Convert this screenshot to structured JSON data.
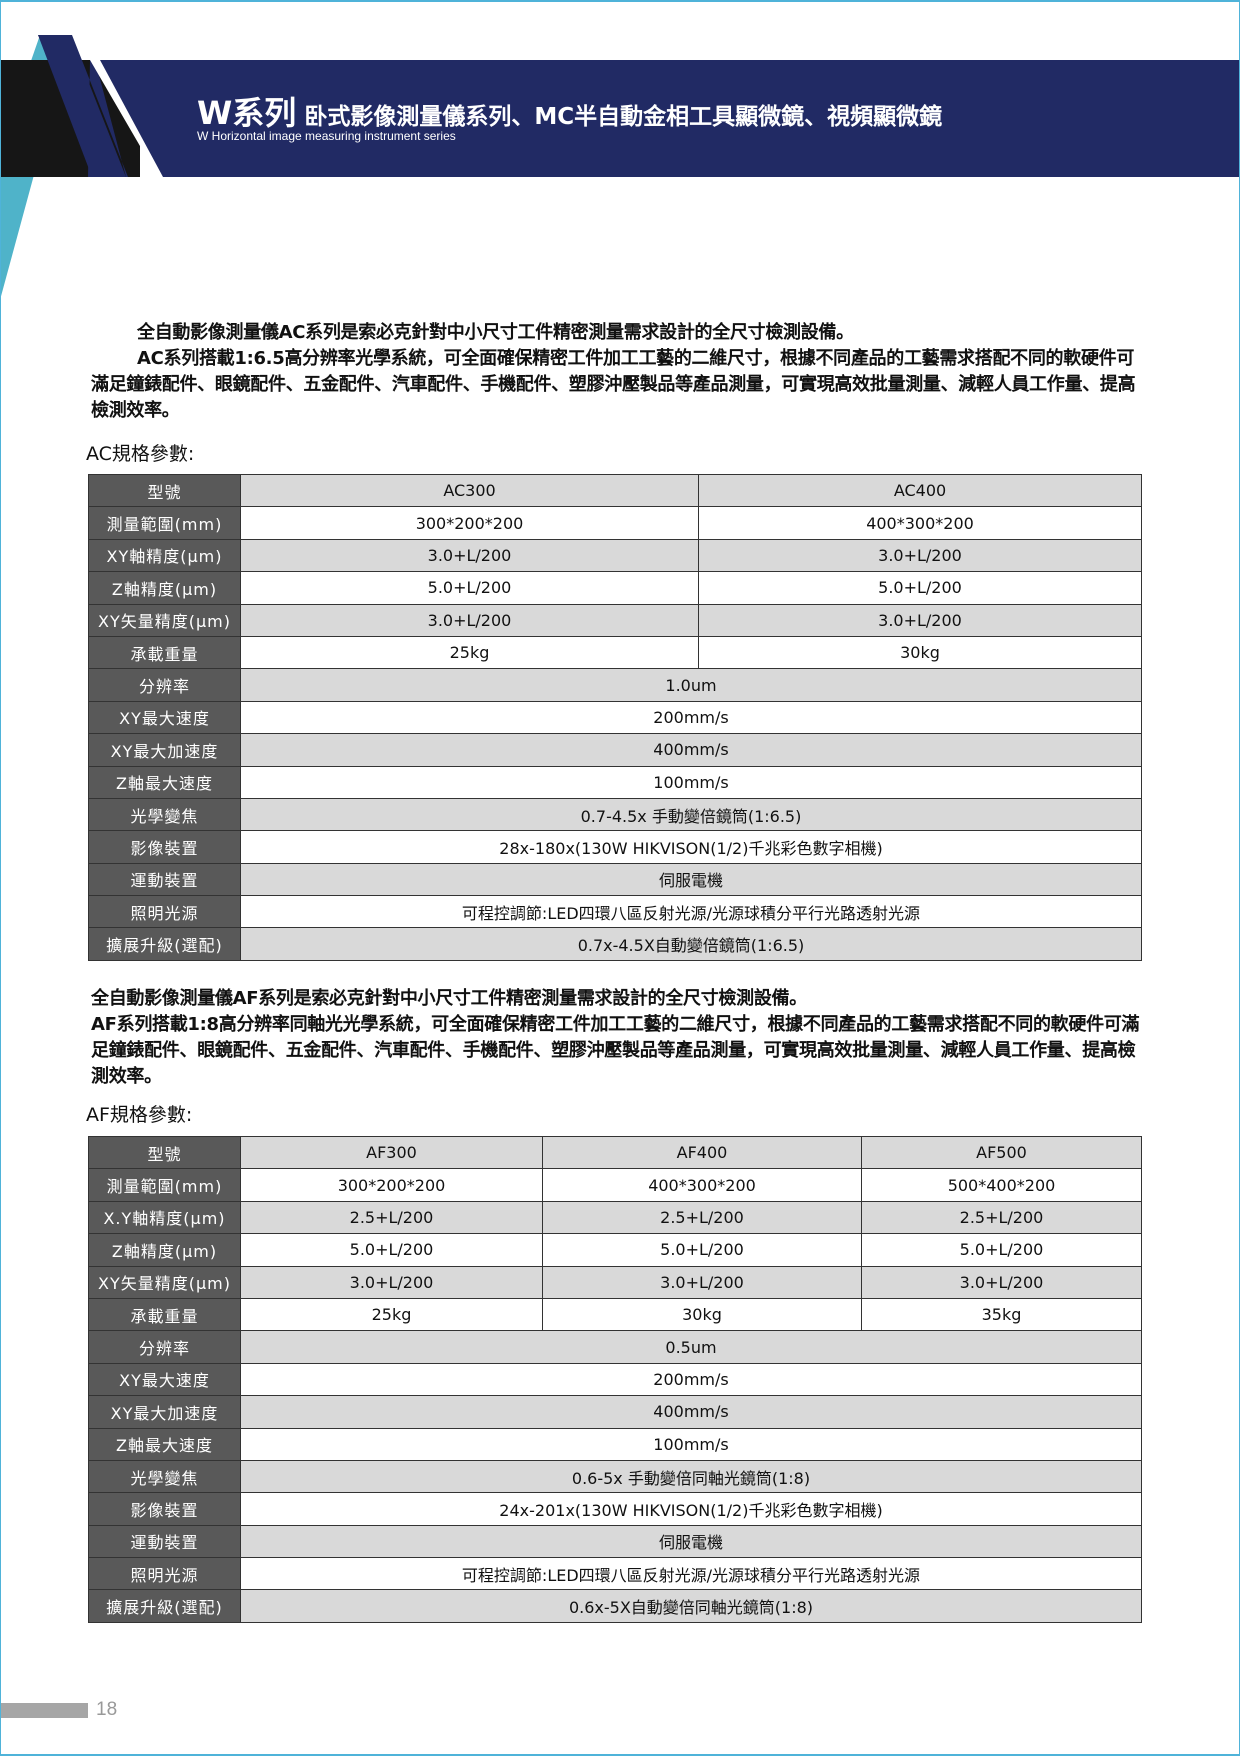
{
  "colors": {
    "navy": "#212a64",
    "cyan": "#4fb3c9",
    "black": "#161616",
    "label_bg": "#595959",
    "row_gray": "#d9d9d9"
  },
  "header": {
    "series": "W系列",
    "title": "卧式影像測量儀系列、MC半自動金相工具顯微鏡、視頻顯微鏡",
    "subtitle": "W Horizontal image measuring instrument series"
  },
  "ac": {
    "para": [
      "全自動影像測量儀AC系列是索必克針對中小尺寸工件精密測量需求設計的全尺寸檢測設備。",
      "AC系列搭載1:6.5高分辨率光學系統，可全面確保精密工件加工工藝的二維尺寸，根據不同產品的工藝需求搭配不同的軟硬件可滿足鐘錶配件、眼鏡配件、五金配件、汽車配件、手機配件、塑膠沖壓製品等產品測量，可實現高效批量測量、減輕人員工作量、提高檢測效率。"
    ],
    "section": "AC規格參數:",
    "rows": [
      {
        "label": "型號",
        "values": [
          "AC300",
          "AC400"
        ]
      },
      {
        "label": "測量範圍(mm)",
        "values": [
          "300*200*200",
          "400*300*200"
        ]
      },
      {
        "label": "XY軸精度(μm)",
        "values": [
          "3.0+L/200",
          "3.0+L/200"
        ]
      },
      {
        "label": "Z軸精度(μm)",
        "values": [
          "5.0+L/200",
          "5.0+L/200"
        ]
      },
      {
        "label": "XY矢量精度(μm)",
        "values": [
          "3.0+L/200",
          "3.0+L/200"
        ]
      },
      {
        "label": "承載重量",
        "values": [
          "25kg",
          "30kg"
        ]
      },
      {
        "label": "分辨率",
        "values": [
          "1.0um"
        ]
      },
      {
        "label": "XY最大速度",
        "values": [
          "200mm/s"
        ]
      },
      {
        "label": "XY最大加速度",
        "values": [
          "400mm/s"
        ]
      },
      {
        "label": "Z軸最大速度",
        "values": [
          "100mm/s"
        ]
      },
      {
        "label": "光學變焦",
        "values": [
          "0.7-4.5x 手動變倍鏡筒(1:6.5)"
        ]
      },
      {
        "label": "影像裝置",
        "values": [
          "28x-180x(130W HIKVISON(1/2)千兆彩色數字相機)"
        ]
      },
      {
        "label": "運動裝置",
        "values": [
          "伺服電機"
        ]
      },
      {
        "label": "照明光源",
        "values": [
          "可程控調節:LED四環八區反射光源/光源球積分平行光路透射光源"
        ]
      },
      {
        "label": "擴展升級(選配)",
        "values": [
          "0.7x-4.5X自動變倍鏡筒(1:6.5)"
        ]
      }
    ]
  },
  "af": {
    "para": [
      "全自動影像測量儀AF系列是索必克針對中小尺寸工件精密測量需求設計的全尺寸檢測設備。",
      "AF系列搭載1:8高分辨率同軸光光學系統，可全面確保精密工件加工工藝的二維尺寸，根據不同產品的工藝需求搭配不同的軟硬件可滿足鐘錶配件、眼鏡配件、五金配件、汽車配件、手機配件、塑膠沖壓製品等產品測量，可實現高效批量測量、減輕人員工作量、提高檢測效率。"
    ],
    "section": "AF規格參數:",
    "rows": [
      {
        "label": "型號",
        "values": [
          "AF300",
          "AF400",
          "AF500"
        ]
      },
      {
        "label": "測量範圍(mm)",
        "values": [
          "300*200*200",
          "400*300*200",
          "500*400*200"
        ]
      },
      {
        "label": "X.Y軸精度(μm)",
        "values": [
          "2.5+L/200",
          "2.5+L/200",
          "2.5+L/200"
        ]
      },
      {
        "label": "Z軸精度(μm)",
        "values": [
          "5.0+L/200",
          "5.0+L/200",
          "5.0+L/200"
        ]
      },
      {
        "label": "XY矢量精度(μm)",
        "values": [
          "3.0+L/200",
          "3.0+L/200",
          "3.0+L/200"
        ]
      },
      {
        "label": "承載重量",
        "values": [
          "25kg",
          "30kg",
          "35kg"
        ]
      },
      {
        "label": "分辨率",
        "values": [
          "0.5um"
        ]
      },
      {
        "label": "XY最大速度",
        "values": [
          "200mm/s"
        ]
      },
      {
        "label": "XY最大加速度",
        "values": [
          "400mm/s"
        ]
      },
      {
        "label": "Z軸最大速度",
        "values": [
          "100mm/s"
        ]
      },
      {
        "label": "光學變焦",
        "values": [
          "0.6-5x 手動變倍同軸光鏡筒(1:8)"
        ]
      },
      {
        "label": "影像裝置",
        "values": [
          "24x-201x(130W HIKVISON(1/2)千兆彩色數字相機)"
        ]
      },
      {
        "label": "運動裝置",
        "values": [
          "伺服電機"
        ]
      },
      {
        "label": "照明光源",
        "values": [
          "可程控調節:LED四環八區反射光源/光源球積分平行光路透射光源"
        ]
      },
      {
        "label": "擴展升級(選配)",
        "values": [
          "0.6x-5X自動變倍同軸光鏡筒(1:8)"
        ]
      }
    ]
  },
  "footer": {
    "page_number": "18"
  }
}
